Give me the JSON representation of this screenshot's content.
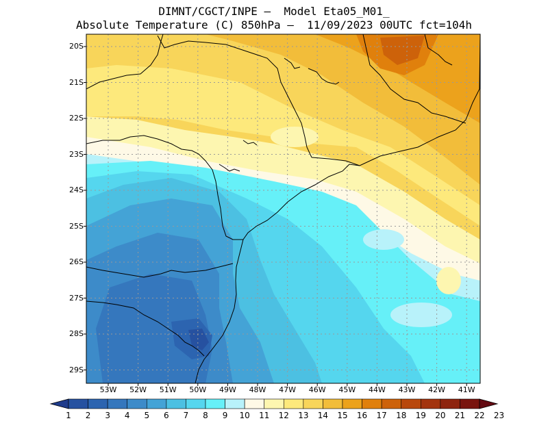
{
  "title_line1": "DIMNT/CGCT/INPE –  Model Eta05_M01_",
  "title_line2": "Absolute Temperature (C) 850hPa –  11/09/2023 00UTC fct=104h",
  "lat_labels": [
    "20S",
    "21S",
    "22S",
    "23S",
    "24S",
    "25S",
    "26S",
    "27S",
    "28S",
    "29S"
  ],
  "lon_labels": [
    "53W",
    "52W",
    "51W",
    "50W",
    "49W",
    "48W",
    "47W",
    "46W",
    "45W",
    "44W",
    "43W",
    "42W",
    "41W"
  ],
  "colorbar": {
    "labels": [
      "1",
      "2",
      "3",
      "4",
      "5",
      "6",
      "7",
      "8",
      "9",
      "10",
      "11",
      "12",
      "13",
      "14",
      "15",
      "16",
      "17",
      "18",
      "19",
      "20",
      "21",
      "22",
      "23"
    ],
    "colors": [
      "#1f3c8c",
      "#2651a0",
      "#2c64b0",
      "#3577bd",
      "#3d8bc9",
      "#44a3d6",
      "#4cc0e2",
      "#55d6ee",
      "#66f0f8",
      "#b8f2fa",
      "#fef9e6",
      "#fdf6b0",
      "#fde97c",
      "#f8d55a",
      "#f2bd3a",
      "#eca21c",
      "#e0800c",
      "#cd620a",
      "#b8480c",
      "#a3340e",
      "#8e240e",
      "#79140e",
      "#640a12"
    ]
  },
  "map": {
    "projection": "lat-lon",
    "lat_range": [
      -29.5,
      -19.6
    ],
    "lon_range": [
      -53.75,
      -40.6
    ],
    "gridlines": true,
    "variable": "Absolute Temperature (C) 850hPa"
  }
}
